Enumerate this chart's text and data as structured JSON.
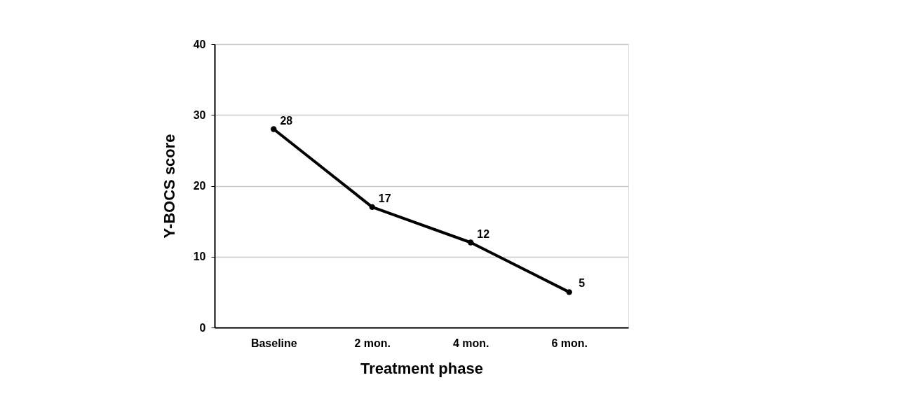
{
  "chart_data": {
    "type": "line",
    "xlabel": "Treatment phase",
    "ylabel": "Y-BOCS score",
    "categories": [
      "Baseline",
      "2 mon.",
      "4 mon.",
      "6 mon."
    ],
    "series": [
      {
        "color": "#000000",
        "values": [
          28,
          17,
          12,
          5
        ]
      }
    ],
    "ylim": [
      0,
      40
    ],
    "yticks": [
      0,
      10,
      20,
      30,
      40
    ],
    "grid": "y",
    "marker": "circle",
    "line_style": "solid",
    "data_labels": true
  }
}
